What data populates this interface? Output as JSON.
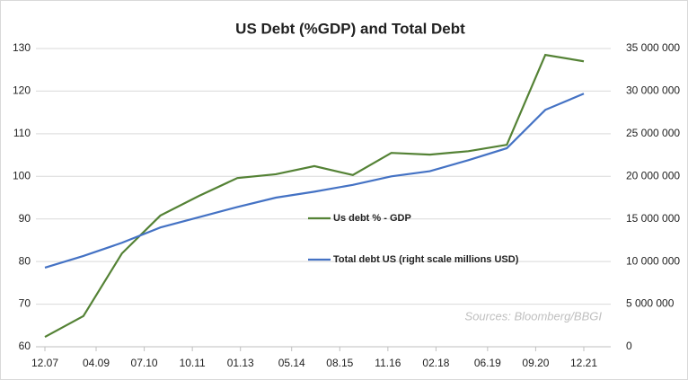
{
  "chart_data": {
    "type": "line",
    "title": "US Debt (%GDP) and Total Debt",
    "annotation": "Sources: Bloomberg/BBGI",
    "x": [
      2007.92,
      2008.92,
      2009.92,
      2010.92,
      2011.92,
      2012.92,
      2013.92,
      2014.92,
      2015.92,
      2016.92,
      2017.92,
      2018.92,
      2019.92,
      2020.92,
      2021.92
    ],
    "xlim": [
      2007.92,
      2021.92
    ],
    "xticks": [
      {
        "value": 2007.92,
        "label": "12.07"
      },
      {
        "value": 2009.25,
        "label": "04.09"
      },
      {
        "value": 2010.5,
        "label": "07.10"
      },
      {
        "value": 2011.75,
        "label": "10.11"
      },
      {
        "value": 2013.0,
        "label": "01.13"
      },
      {
        "value": 2014.33,
        "label": "05.14"
      },
      {
        "value": 2015.58,
        "label": "08.15"
      },
      {
        "value": 2016.83,
        "label": "11.16"
      },
      {
        "value": 2018.08,
        "label": "02.18"
      },
      {
        "value": 2019.42,
        "label": "06.19"
      },
      {
        "value": 2020.67,
        "label": "09.20"
      },
      {
        "value": 2021.92,
        "label": "12.21"
      }
    ],
    "ylim": [
      60,
      130
    ],
    "yticks": [
      60,
      70,
      80,
      90,
      100,
      110,
      120,
      130
    ],
    "y2lim": [
      0,
      35000000
    ],
    "y2ticks": [
      0,
      {
        "value": 5000000,
        "label": "5 000 000"
      },
      {
        "value": 10000000,
        "label": "10 000 000"
      },
      {
        "value": 15000000,
        "label": "15 000 000"
      },
      {
        "value": 20000000,
        "label": "20 000 000"
      },
      {
        "value": 25000000,
        "label": "25 000 000"
      },
      {
        "value": 30000000,
        "label": "30 000 000"
      },
      {
        "value": 35000000,
        "label": "35 000 000"
      }
    ],
    "grid": true,
    "series": [
      {
        "name": "Us debt % - GDP",
        "color": "#548235",
        "values": [
          62.3,
          67.2,
          81.9,
          90.8,
          95.4,
          99.6,
          100.5,
          102.4,
          100.3,
          105.5,
          105.1,
          105.9,
          107.4,
          128.5,
          127.0
        ]
      },
      {
        "name": "Total debt US (right scale millions USD)",
        "color": "#4472c4",
        "axis": "y2",
        "values": [
          9280000,
          10650000,
          12200000,
          14000000,
          15200000,
          16400000,
          17500000,
          18200000,
          19000000,
          20000000,
          20600000,
          21900000,
          23300000,
          27800000,
          29700000
        ]
      }
    ]
  }
}
